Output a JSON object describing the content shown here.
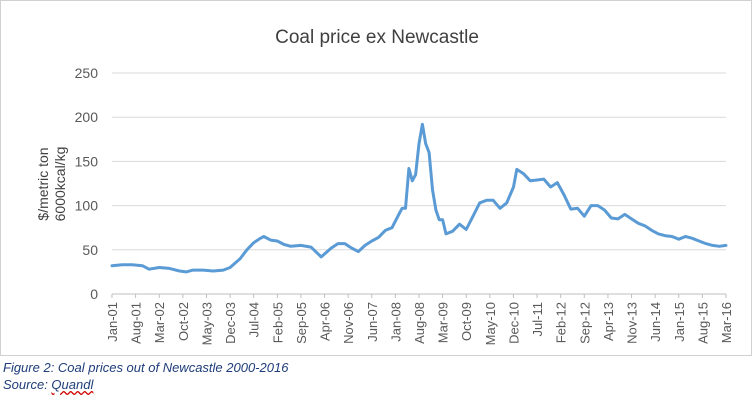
{
  "chart_data": {
    "type": "line",
    "title": "Coal price ex Newcastle",
    "ylabel_line1": "$/metric ton",
    "ylabel_line2": "6000kcal/kg",
    "xlabel": "",
    "ylim": [
      0,
      250
    ],
    "yticks": [
      0,
      50,
      100,
      150,
      200,
      250
    ],
    "xlim": [
      "2001-01",
      "2016-03"
    ],
    "grid": true,
    "legend": "none",
    "line_color": "#5b9bd5",
    "xticks": [
      "Jan-01",
      "Aug-01",
      "Mar-02",
      "Oct-02",
      "May-03",
      "Dec-03",
      "Jul-04",
      "Feb-05",
      "Sep-05",
      "Apr-06",
      "Nov-06",
      "Jun-07",
      "Jan-08",
      "Aug-08",
      "Mar-09",
      "Oct-09",
      "May-10",
      "Dec-10",
      "Jul-11",
      "Feb-12",
      "Sep-12",
      "Apr-13",
      "Nov-13",
      "Jun-14",
      "Jan-15",
      "Aug-15",
      "Mar-16"
    ],
    "series": [
      {
        "points": [
          [
            "2001-01",
            32
          ],
          [
            "2001-04",
            33
          ],
          [
            "2001-07",
            33
          ],
          [
            "2001-10",
            32
          ],
          [
            "2001-12",
            28
          ],
          [
            "2002-03",
            30
          ],
          [
            "2002-06",
            29
          ],
          [
            "2002-09",
            26
          ],
          [
            "2002-11",
            25
          ],
          [
            "2003-01",
            27
          ],
          [
            "2003-04",
            27
          ],
          [
            "2003-07",
            26
          ],
          [
            "2003-10",
            27
          ],
          [
            "2003-12",
            30
          ],
          [
            "2004-03",
            40
          ],
          [
            "2004-05",
            50
          ],
          [
            "2004-07",
            58
          ],
          [
            "2004-09",
            63
          ],
          [
            "2004-10",
            65
          ],
          [
            "2004-12",
            61
          ],
          [
            "2005-02",
            60
          ],
          [
            "2005-04",
            56
          ],
          [
            "2005-06",
            54
          ],
          [
            "2005-09",
            55
          ],
          [
            "2005-12",
            53
          ],
          [
            "2006-03",
            42
          ],
          [
            "2006-06",
            52
          ],
          [
            "2006-08",
            57
          ],
          [
            "2006-10",
            57
          ],
          [
            "2006-12",
            52
          ],
          [
            "2007-02",
            48
          ],
          [
            "2007-04",
            55
          ],
          [
            "2007-06",
            60
          ],
          [
            "2007-08",
            64
          ],
          [
            "2007-10",
            72
          ],
          [
            "2007-12",
            75
          ],
          [
            "2008-02",
            90
          ],
          [
            "2008-03",
            97
          ],
          [
            "2008-04",
            97
          ],
          [
            "2008-05",
            142
          ],
          [
            "2008-06",
            128
          ],
          [
            "2008-07",
            135
          ],
          [
            "2008-08",
            170
          ],
          [
            "2008-09",
            192
          ],
          [
            "2008-10",
            170
          ],
          [
            "2008-11",
            160
          ],
          [
            "2008-12",
            118
          ],
          [
            "2009-01",
            95
          ],
          [
            "2009-02",
            84
          ],
          [
            "2009-03",
            84
          ],
          [
            "2009-04",
            68
          ],
          [
            "2009-06",
            71
          ],
          [
            "2009-08",
            79
          ],
          [
            "2009-10",
            73
          ],
          [
            "2009-12",
            88
          ],
          [
            "2010-02",
            103
          ],
          [
            "2010-04",
            106
          ],
          [
            "2010-06",
            106
          ],
          [
            "2010-08",
            97
          ],
          [
            "2010-10",
            103
          ],
          [
            "2010-12",
            121
          ],
          [
            "2011-01",
            141
          ],
          [
            "2011-03",
            136
          ],
          [
            "2011-05",
            128
          ],
          [
            "2011-07",
            129
          ],
          [
            "2011-09",
            130
          ],
          [
            "2011-11",
            121
          ],
          [
            "2012-01",
            126
          ],
          [
            "2012-03",
            112
          ],
          [
            "2012-05",
            96
          ],
          [
            "2012-07",
            97
          ],
          [
            "2012-09",
            88
          ],
          [
            "2012-11",
            100
          ],
          [
            "2013-01",
            100
          ],
          [
            "2013-03",
            95
          ],
          [
            "2013-05",
            86
          ],
          [
            "2013-07",
            85
          ],
          [
            "2013-09",
            90
          ],
          [
            "2013-11",
            85
          ],
          [
            "2014-01",
            80
          ],
          [
            "2014-03",
            77
          ],
          [
            "2014-05",
            72
          ],
          [
            "2014-07",
            68
          ],
          [
            "2014-09",
            66
          ],
          [
            "2014-11",
            65
          ],
          [
            "2015-01",
            62
          ],
          [
            "2015-03",
            65
          ],
          [
            "2015-05",
            63
          ],
          [
            "2015-07",
            60
          ],
          [
            "2015-09",
            57
          ],
          [
            "2015-11",
            55
          ],
          [
            "2016-01",
            54
          ],
          [
            "2016-03",
            55
          ]
        ]
      }
    ]
  },
  "caption": {
    "line1": "Figure 2: Coal prices out of Newcastle 2000-2016",
    "source_prefix": "Source: ",
    "source_link": "Quandl"
  }
}
